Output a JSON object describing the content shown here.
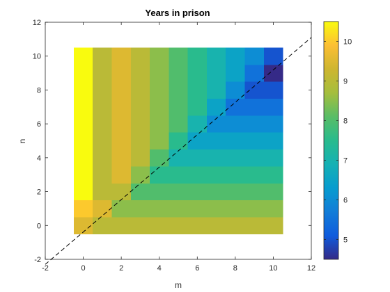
{
  "chart_data": {
    "type": "heatmap",
    "title": "Years in prison",
    "xlabel": "m",
    "ylabel": "n",
    "xlim": [
      -2,
      12
    ],
    "ylim": [
      -2,
      12
    ],
    "x": [
      0,
      1,
      2,
      3,
      4,
      5,
      6,
      7,
      8,
      9,
      10
    ],
    "y": [
      0,
      1,
      2,
      3,
      4,
      5,
      6,
      7,
      8,
      9,
      10
    ],
    "z_rule": "min(m,n)<=1 ? 10.5-0.5*m-n : 10-n, for cells with m>=n; symmetric",
    "z": [
      [
        9.5,
        9.0,
        9.0,
        9.0,
        9.0,
        9.0,
        9.0,
        9.0,
        9.0,
        9.0,
        9.0
      ],
      [
        10.0,
        9.5,
        8.5,
        8.5,
        8.5,
        8.5,
        8.5,
        8.5,
        8.5,
        8.5,
        8.5
      ],
      [
        10.5,
        9.0,
        9.0,
        8.0,
        8.0,
        8.0,
        8.0,
        8.0,
        8.0,
        8.0,
        8.0
      ],
      [
        10.5,
        9.0,
        9.5,
        8.5,
        7.5,
        7.5,
        7.5,
        7.5,
        7.5,
        7.5,
        7.5
      ],
      [
        10.5,
        9.0,
        9.5,
        9.0,
        8.0,
        7.0,
        7.0,
        7.0,
        7.0,
        7.0,
        7.0
      ],
      [
        10.5,
        9.0,
        9.5,
        9.0,
        8.5,
        7.5,
        6.5,
        6.5,
        6.5,
        6.5,
        6.5
      ],
      [
        10.5,
        9.0,
        9.5,
        9.0,
        8.5,
        8.0,
        7.0,
        6.0,
        6.0,
        6.0,
        6.0
      ],
      [
        10.5,
        9.0,
        9.5,
        9.0,
        8.5,
        8.0,
        7.5,
        6.5,
        5.5,
        5.5,
        5.5
      ],
      [
        10.5,
        9.0,
        9.5,
        9.0,
        8.5,
        8.0,
        7.5,
        7.0,
        6.0,
        5.0,
        5.0
      ],
      [
        10.5,
        9.0,
        9.5,
        9.0,
        8.5,
        8.0,
        7.5,
        7.0,
        6.5,
        5.5,
        4.5
      ],
      [
        10.5,
        9.0,
        9.5,
        9.0,
        8.5,
        8.0,
        7.5,
        7.0,
        6.5,
        6.0,
        5.0
      ]
    ],
    "xticks": [
      "-2",
      "0",
      "2",
      "4",
      "6",
      "8",
      "10",
      "12"
    ],
    "yticks": [
      "-2",
      "0",
      "2",
      "4",
      "6",
      "8",
      "10",
      "12"
    ],
    "reference_line": {
      "style": "dashed",
      "x": [
        -2,
        12
      ],
      "y": [
        -2.3,
        11.1
      ]
    },
    "colorbar": {
      "clim": [
        4.5,
        10.5
      ],
      "ticks": [
        "5",
        "6",
        "7",
        "8",
        "9",
        "10"
      ],
      "colormap": "parula"
    },
    "grid": false
  }
}
